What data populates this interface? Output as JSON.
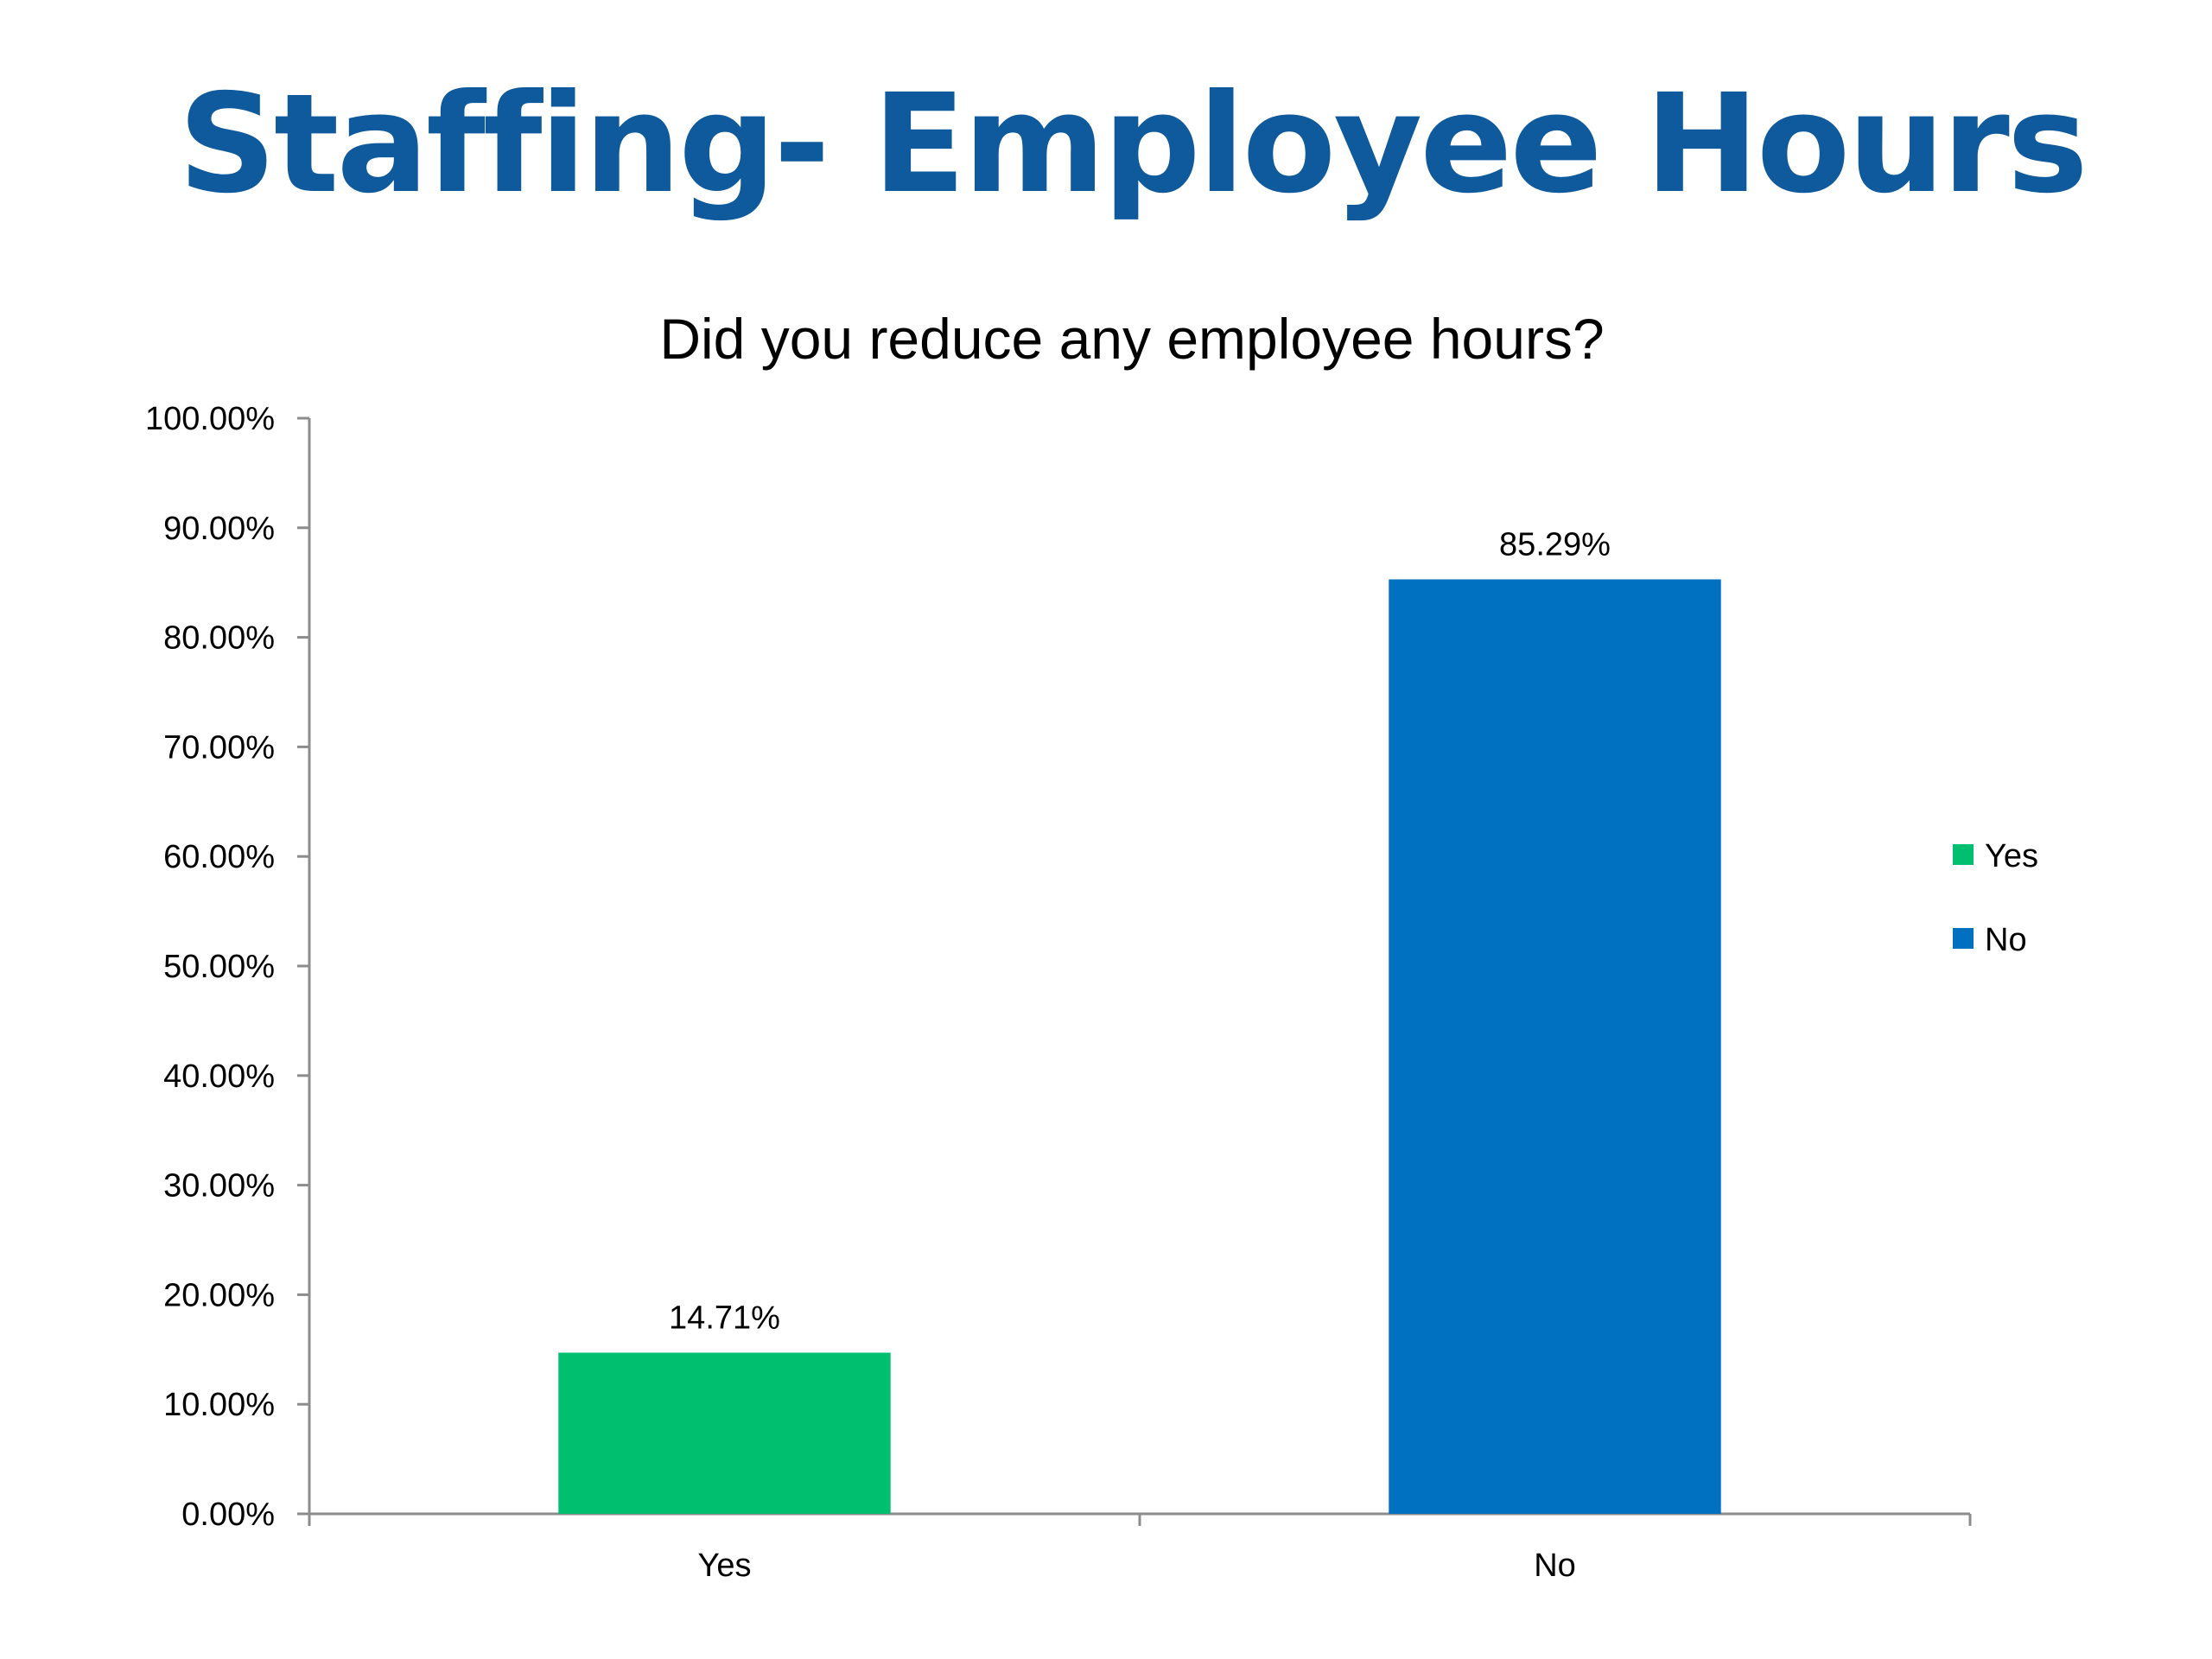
{
  "slide": {
    "title": "Staffing- Employee Hours"
  },
  "colors": {
    "title": "#0e5a9c",
    "yes": "#00bf6f",
    "no": "#0070c0",
    "axis": "#8c8c8c",
    "text": "#000000"
  },
  "chart_data": {
    "type": "bar",
    "title": "Did you reduce any employee hours?",
    "categories": [
      "Yes",
      "No"
    ],
    "values": [
      14.71,
      85.29
    ],
    "data_labels": [
      "14.71%",
      "85.29%"
    ],
    "bar_colors": [
      "#00bf6f",
      "#0070c0"
    ],
    "ylim": [
      0,
      100
    ],
    "y_ticks": [
      0,
      10,
      20,
      30,
      40,
      50,
      60,
      70,
      80,
      90,
      100
    ],
    "y_tick_labels": [
      "0.00%",
      "10.00%",
      "20.00%",
      "30.00%",
      "40.00%",
      "50.00%",
      "60.00%",
      "70.00%",
      "80.00%",
      "90.00%",
      "100.00%"
    ],
    "legend": {
      "position": "right",
      "entries": [
        {
          "name": "Yes",
          "color": "#00bf6f"
        },
        {
          "name": "No",
          "color": "#0070c0"
        }
      ]
    },
    "grid": false
  }
}
